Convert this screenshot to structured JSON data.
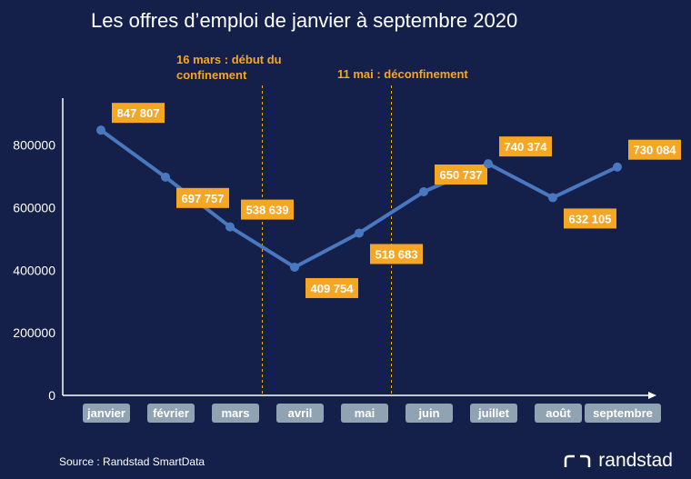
{
  "title": "Les offres d’emploi de janvier à septembre 2020",
  "events": [
    {
      "label": "16 mars : début du confinement"
    },
    {
      "label": "11 mai : déconfinement"
    }
  ],
  "source": "Source : Randstad  SmartData",
  "brand": "randstad",
  "colors": {
    "background": "#14204a",
    "line": "#4a78c0",
    "label_bg": "#f5a623",
    "category_bg": "#8fa3b3",
    "event_text": "#f5a623"
  },
  "chart_data": {
    "type": "line",
    "title": "Les offres d’emploi de janvier à septembre 2020",
    "xlabel": "",
    "ylabel": "",
    "categories": [
      "janvier",
      "février",
      "mars",
      "avril",
      "mai",
      "juin",
      "juillet",
      "août",
      "septembre"
    ],
    "series": [
      {
        "values": [
          847807,
          697757,
          538639,
          409754,
          518683,
          650737,
          740374,
          632105,
          730084
        ]
      }
    ],
    "data_labels": [
      "847 807",
      "697 757",
      "538 639",
      "409 754",
      "518 683",
      "650 737",
      "740 374",
      "632 105",
      "730 084"
    ],
    "label_side": [
      "above",
      "below",
      "above",
      "below",
      "below",
      "above",
      "above",
      "below",
      "above"
    ],
    "yticks": [
      "0",
      "200000",
      "400000",
      "600000",
      "800000"
    ],
    "ylim": [
      0,
      950000
    ],
    "vlines_between": [
      [
        2,
        3
      ],
      [
        4,
        5
      ]
    ],
    "grid": false,
    "legend": "none"
  }
}
